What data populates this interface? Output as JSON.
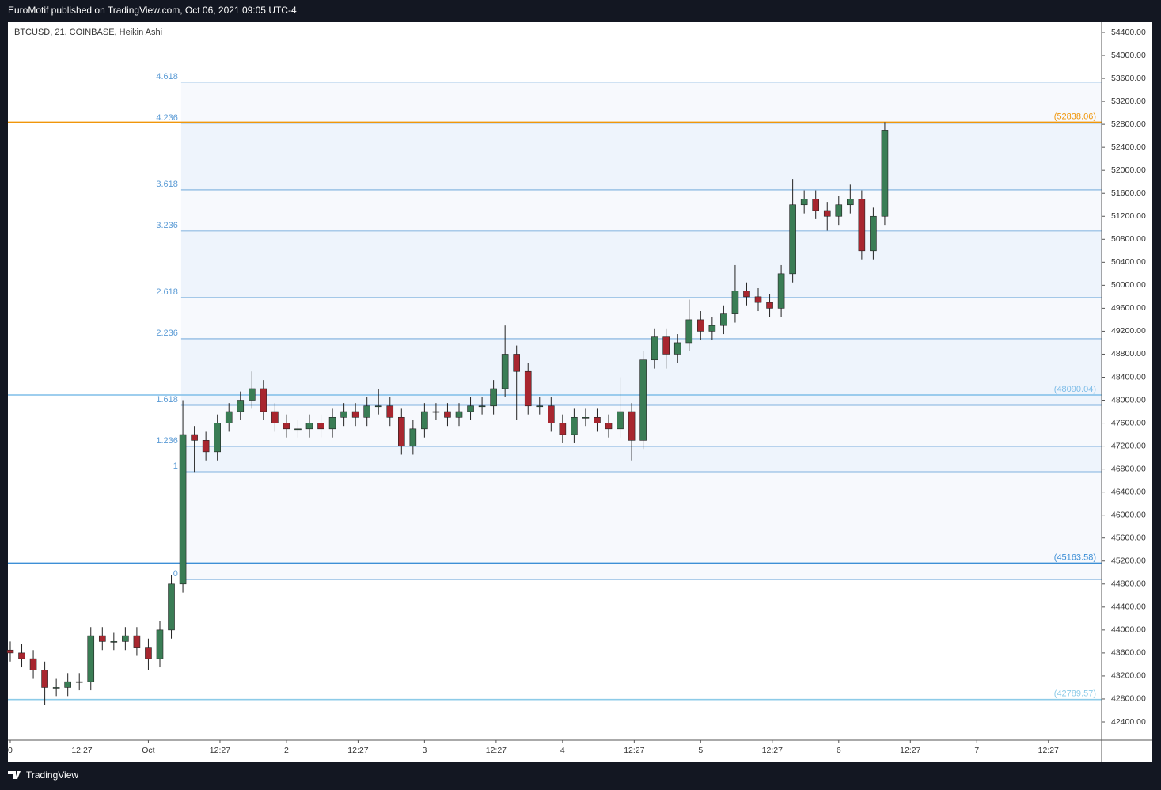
{
  "header": "EuroMotif published on TradingView.com, Oct 06, 2021 09:05 UTC-4",
  "footer": "TradingView",
  "chart_data": {
    "type": "candlestick",
    "title": "BTCUSD, 21, COINBASE, Heikin Ashi",
    "up_color": "#3a7d55",
    "down_color": "#a8262f",
    "x": [
      0,
      2,
      4,
      6,
      8,
      10,
      12,
      14,
      16,
      18,
      20,
      22,
      24,
      26,
      28,
      30,
      32,
      34,
      36,
      38,
      40,
      42,
      44,
      46,
      48,
      50,
      52,
      54,
      56,
      58,
      60,
      62,
      64,
      66,
      68,
      70,
      72,
      74,
      76,
      78,
      80,
      82,
      84,
      86,
      88,
      90,
      92,
      94,
      96,
      98,
      100,
      102,
      104,
      106,
      108,
      110,
      112,
      114,
      116,
      118,
      120,
      122,
      124,
      126,
      128,
      130,
      132,
      134,
      136,
      138,
      140,
      142,
      144,
      146,
      148,
      150,
      152
    ],
    "open": [
      43650,
      43600,
      43500,
      43300,
      43000,
      43000,
      43100,
      43100,
      43900,
      43800,
      43800,
      43900,
      43700,
      43500,
      44000,
      44800,
      47400,
      47300,
      47100,
      47600,
      47800,
      48000,
      48200,
      47800,
      47600,
      47500,
      47500,
      47600,
      47500,
      47700,
      47800,
      47700,
      47900,
      47900,
      47700,
      47200,
      47500,
      47800,
      47800,
      47700,
      47800,
      47900,
      47900,
      48200,
      48800,
      48500,
      47900,
      47900,
      47600,
      47400,
      47700,
      47700,
      47600,
      47500,
      47800,
      47300,
      48700,
      49100,
      48800,
      49000,
      49400,
      49200,
      49300,
      49500,
      49900,
      49800,
      49700,
      49600,
      50200,
      51400,
      51500,
      51300,
      51200,
      51400,
      51500,
      50600,
      51200
    ],
    "high": [
      43800,
      43750,
      43650,
      43450,
      43150,
      43250,
      43250,
      44050,
      44050,
      43950,
      44050,
      44050,
      43850,
      44150,
      44950,
      48000,
      47550,
      47450,
      47750,
      47950,
      48150,
      48500,
      48350,
      47950,
      47750,
      47650,
      47750,
      47750,
      47850,
      47950,
      47950,
      48050,
      48200,
      48050,
      47850,
      47650,
      47950,
      47950,
      47950,
      47950,
      48050,
      48050,
      48350,
      49300,
      48950,
      48650,
      48050,
      48050,
      47750,
      47850,
      47850,
      47850,
      47750,
      48400,
      47950,
      48850,
      49250,
      49250,
      49150,
      49750,
      49550,
      49450,
      49650,
      50350,
      50050,
      49950,
      49850,
      50350,
      51850,
      51650,
      51650,
      51450,
      51550,
      51750,
      51650,
      51350,
      52838
    ],
    "low": [
      43450,
      43350,
      43150,
      42700,
      42850,
      42850,
      42950,
      42950,
      43650,
      43650,
      43650,
      43550,
      43300,
      43350,
      43850,
      44650,
      46750,
      46950,
      46950,
      47450,
      47650,
      47850,
      47650,
      47450,
      47350,
      47350,
      47350,
      47350,
      47350,
      47550,
      47550,
      47550,
      47750,
      47550,
      47050,
      47050,
      47350,
      47650,
      47550,
      47550,
      47650,
      47750,
      47750,
      48050,
      47650,
      47750,
      47750,
      47450,
      47250,
      47250,
      47550,
      47450,
      47350,
      47350,
      46950,
      47150,
      48550,
      48550,
      48650,
      48850,
      49050,
      49050,
      49150,
      49350,
      49650,
      49550,
      49450,
      49450,
      50050,
      51250,
      51150,
      50950,
      51050,
      51250,
      50450,
      50450,
      51050
    ],
    "close": [
      43600,
      43500,
      43300,
      43000,
      43000,
      43100,
      43100,
      43900,
      43800,
      43800,
      43900,
      43700,
      43500,
      44000,
      44800,
      47400,
      47300,
      47100,
      47600,
      47800,
      48000,
      48200,
      47800,
      47600,
      47500,
      47500,
      47600,
      47500,
      47700,
      47800,
      47700,
      47900,
      47900,
      47700,
      47200,
      47500,
      47800,
      47800,
      47700,
      47800,
      47900,
      47900,
      48200,
      48800,
      48500,
      47900,
      47900,
      47600,
      47400,
      47700,
      47700,
      47600,
      47500,
      47800,
      47300,
      48700,
      49100,
      48800,
      49000,
      49400,
      49200,
      49300,
      49500,
      49900,
      49800,
      49700,
      49600,
      50200,
      51400,
      51500,
      51300,
      51200,
      51400,
      51500,
      50600,
      51200,
      52700
    ],
    "xlim": [
      -0.41,
      189.7
    ],
    "xticks": [
      0,
      {
        "value": 12.45,
        "label": "12:27"
      },
      {
        "value": 24,
        "label": "Oct"
      },
      {
        "value": 36.45,
        "label": "12:27"
      },
      {
        "value": 48,
        "label": "2"
      },
      {
        "value": 60.45,
        "label": "12:27"
      },
      {
        "value": 72,
        "label": "3"
      },
      {
        "value": 84.45,
        "label": "12:27"
      },
      {
        "value": 96,
        "label": "4"
      },
      {
        "value": 108.45,
        "label": "12:27"
      },
      {
        "value": 120,
        "label": "5"
      },
      {
        "value": 132.45,
        "label": "12:27"
      },
      {
        "value": 144,
        "label": "6"
      },
      {
        "value": 156.45,
        "label": "12:27"
      },
      {
        "value": 168,
        "label": "7"
      },
      {
        "value": 180.45,
        "label": "12:27"
      }
    ],
    "ylim": [
      42083,
      54579
    ],
    "yticks": [
      {
        "value": 42400,
        "label": "42400.00"
      },
      {
        "value": 42800,
        "label": "42800.00"
      },
      {
        "value": 43200,
        "label": "43200.00"
      },
      {
        "value": 43600,
        "label": "43600.00"
      },
      {
        "value": 44000,
        "label": "44000.00"
      },
      {
        "value": 44400,
        "label": "44400.00"
      },
      {
        "value": 44800,
        "label": "44800.00"
      },
      {
        "value": 45200,
        "label": "45200.00"
      },
      {
        "value": 45600,
        "label": "45600.00"
      },
      {
        "value": 46000,
        "label": "46000.00"
      },
      {
        "value": 46400,
        "label": "46400.00"
      },
      {
        "value": 46800,
        "label": "46800.00"
      },
      {
        "value": 47200,
        "label": "47200.00"
      },
      {
        "value": 47600,
        "label": "47600.00"
      },
      {
        "value": 48000,
        "label": "48000.00"
      },
      {
        "value": 48400,
        "label": "48400.00"
      },
      {
        "value": 48800,
        "label": "48800.00"
      },
      {
        "value": 49200,
        "label": "49200.00"
      },
      {
        "value": 49600,
        "label": "49600.00"
      },
      {
        "value": 50000,
        "label": "50000.00"
      },
      {
        "value": 50400,
        "label": "50400.00"
      },
      {
        "value": 50800,
        "label": "50800.00"
      },
      {
        "value": 51200,
        "label": "51200.00"
      },
      {
        "value": 51600,
        "label": "51600.00"
      },
      {
        "value": 52000,
        "label": "52000.00"
      },
      {
        "value": 52400,
        "label": "52400.00"
      },
      {
        "value": 52800,
        "label": "52800.00"
      },
      {
        "value": 53200,
        "label": "53200.00"
      },
      {
        "value": 53600,
        "label": "53600.00"
      },
      {
        "value": 54000,
        "label": "54000.00"
      },
      {
        "value": 54400,
        "label": "54400.00"
      }
    ],
    "fib_x_start": 29.7,
    "fib_range": [
      44879,
      46753
    ],
    "fib_color": "#5b9bd5",
    "fib_levels": [
      0,
      1,
      1.236,
      1.618,
      2.236,
      2.618,
      3.236,
      3.618,
      4.236,
      4.618
    ],
    "price_lines": [
      {
        "value": 52838.06,
        "label": "(52838.06)",
        "color": "#f0960a"
      },
      {
        "value": 48090.04,
        "label": "(48090.04)",
        "color": "#7fbde8"
      },
      {
        "value": 45163.58,
        "label": "(45163.58)",
        "color": "#3d8fd6"
      },
      {
        "value": 42789.57,
        "label": "(42789.57)",
        "color": "#8ccbe8"
      }
    ]
  }
}
